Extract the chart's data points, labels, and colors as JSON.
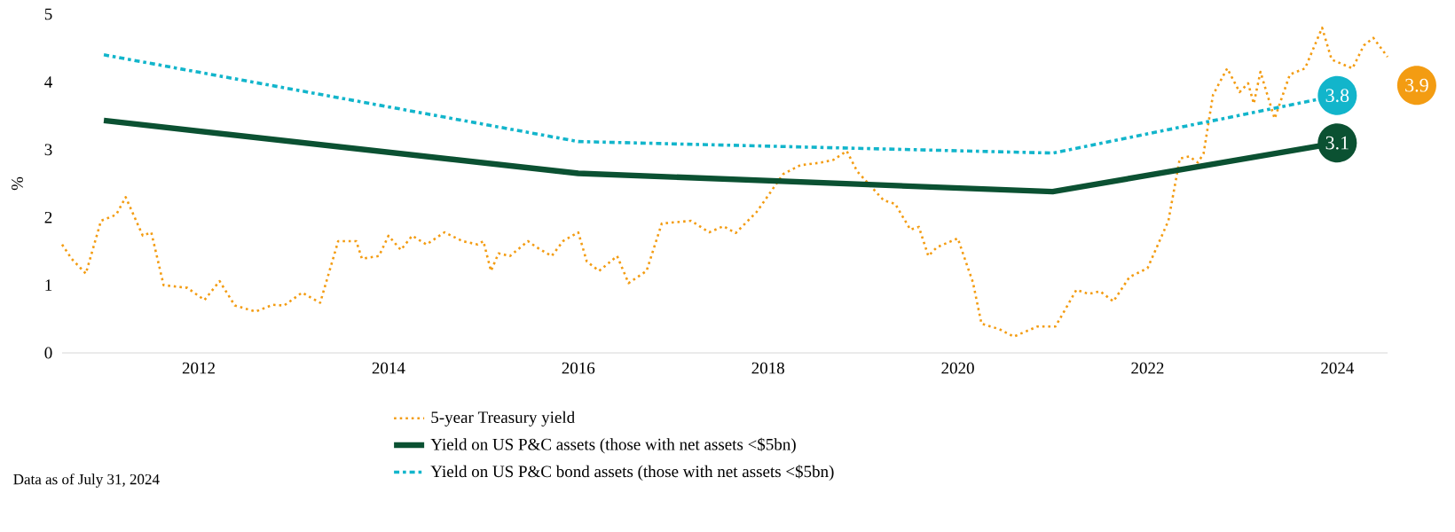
{
  "chart_data": {
    "type": "line",
    "ylabel": "%",
    "ylim": [
      0,
      5
    ],
    "xticks": [
      2012,
      2014,
      2016,
      2018,
      2020,
      2022,
      2024
    ],
    "yticks": [
      0,
      1,
      2,
      3,
      4,
      5
    ],
    "grid": false,
    "legend": "bottom",
    "marker": "none",
    "xlim": [
      2010.56,
      2024.53
    ],
    "annotations": [
      "Data as of July 31, 2024",
      "3.9"
    ],
    "series": [
      {
        "name": "5-year Treasury yield",
        "color": "#f39c12",
        "line_style": "dotted",
        "x": [
          2010.56,
          2010.66,
          2010.81,
          2010.97,
          2011.13,
          2011.23,
          2011.41,
          2011.5,
          2011.63,
          2011.88,
          2012.06,
          2012.22,
          2012.38,
          2012.6,
          2012.78,
          2012.9,
          2013.09,
          2013.28,
          2013.47,
          2013.66,
          2013.72,
          2013.9,
          2014.0,
          2014.13,
          2014.25,
          2014.4,
          2014.59,
          2014.78,
          2014.94,
          2015.0,
          2015.08,
          2015.16,
          2015.28,
          2015.47,
          2015.56,
          2015.72,
          2015.84,
          2016.0,
          2016.09,
          2016.22,
          2016.41,
          2016.53,
          2016.72,
          2016.88,
          2017.19,
          2017.38,
          2017.53,
          2017.66,
          2017.88,
          2018.16,
          2018.34,
          2018.56,
          2018.69,
          2018.83,
          2018.94,
          2019.22,
          2019.34,
          2019.5,
          2019.59,
          2019.69,
          2019.78,
          2020.0,
          2020.16,
          2020.25,
          2020.44,
          2020.59,
          2020.84,
          2021.03,
          2021.25,
          2021.38,
          2021.5,
          2021.64,
          2021.81,
          2022.0,
          2022.22,
          2022.34,
          2022.44,
          2022.53,
          2022.59,
          2022.69,
          2022.84,
          2022.97,
          2023.06,
          2023.12,
          2023.19,
          2023.31,
          2023.34,
          2023.5,
          2023.66,
          2023.84,
          2023.94,
          2024.16,
          2024.28,
          2024.38,
          2024.53
        ],
        "values": [
          1.6,
          1.39,
          1.17,
          1.95,
          2.04,
          2.3,
          1.73,
          1.78,
          1.0,
          0.96,
          0.78,
          1.06,
          0.7,
          0.61,
          0.71,
          0.7,
          0.89,
          0.74,
          1.65,
          1.65,
          1.39,
          1.43,
          1.73,
          1.52,
          1.73,
          1.6,
          1.78,
          1.65,
          1.6,
          1.65,
          1.21,
          1.47,
          1.43,
          1.65,
          1.56,
          1.43,
          1.65,
          1.78,
          1.35,
          1.21,
          1.43,
          1.03,
          1.21,
          1.91,
          1.95,
          1.78,
          1.87,
          1.77,
          2.08,
          2.64,
          2.77,
          2.81,
          2.85,
          2.98,
          2.68,
          2.25,
          2.2,
          1.82,
          1.86,
          1.43,
          1.56,
          1.69,
          1.04,
          0.43,
          0.35,
          0.24,
          0.39,
          0.39,
          0.93,
          0.87,
          0.91,
          0.76,
          1.12,
          1.25,
          1.95,
          2.87,
          2.9,
          2.81,
          2.94,
          3.81,
          4.2,
          3.85,
          3.98,
          3.68,
          4.15,
          3.59,
          3.46,
          4.11,
          4.2,
          4.8,
          4.33,
          4.2,
          4.54,
          4.65,
          4.37
        ]
      },
      {
        "name": "Yield on US P&C assets (those with net assets <$5bn)",
        "color": "#0b5132",
        "line_style": "solid",
        "x": [
          2011,
          2016,
          2021,
          2024
        ],
        "values": [
          3.43,
          2.65,
          2.38,
          3.1
        ],
        "value_labels": [
          null,
          null,
          null,
          "3.1"
        ]
      },
      {
        "name": "Yield on US P&C bond assets (those with net assets <$5bn)",
        "color": "#12b5cb",
        "line_style": "dashdot",
        "x": [
          2011,
          2016,
          2021,
          2024
        ],
        "values": [
          4.4,
          3.12,
          2.95,
          3.8
        ],
        "value_labels": [
          null,
          null,
          null,
          "3.8"
        ]
      }
    ]
  }
}
